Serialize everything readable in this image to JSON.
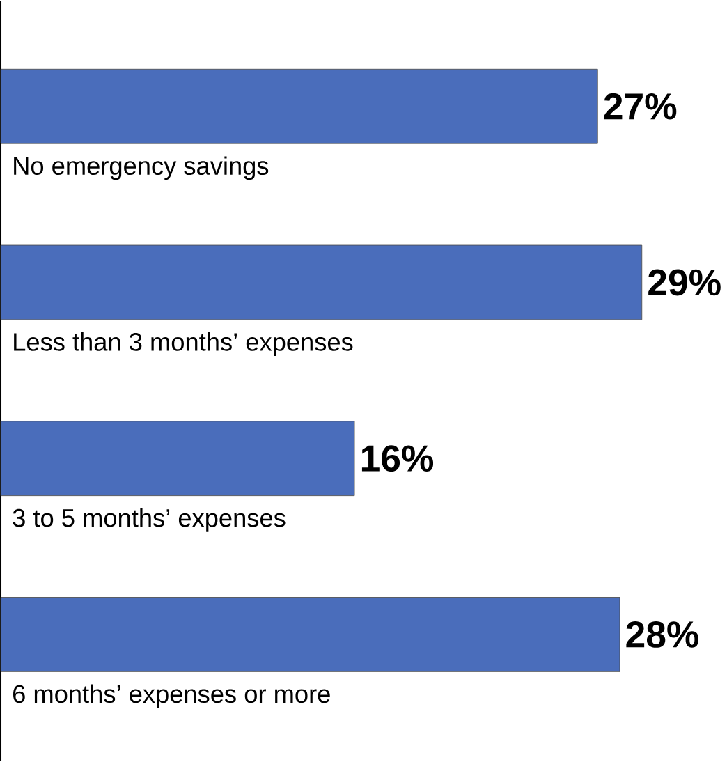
{
  "chart_data": {
    "type": "bar",
    "orientation": "horizontal",
    "categories": [
      "No emergency savings",
      "Less than 3 months’ expenses",
      "3 to 5 months’ expenses",
      "6 months’ expenses or more"
    ],
    "values": [
      27,
      29,
      16,
      28
    ],
    "value_labels": [
      "27%",
      "29%",
      "16%",
      "28%"
    ],
    "color": "#4a6dbb"
  }
}
